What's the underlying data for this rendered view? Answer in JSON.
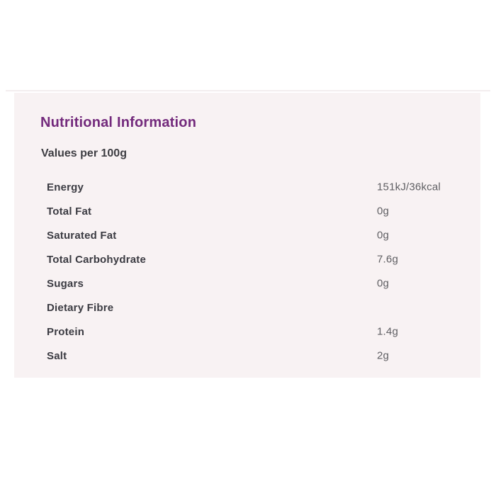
{
  "panel": {
    "title": "Nutritional Information",
    "subtitle": "Values per 100g",
    "rows": [
      {
        "label": "Energy",
        "value": "151kJ/36kcal"
      },
      {
        "label": "Total Fat",
        "value": "0g"
      },
      {
        "label": "Saturated Fat",
        "value": "0g"
      },
      {
        "label": "Total Carbohydrate",
        "value": "7.6g"
      },
      {
        "label": "Sugars",
        "value": "0g"
      },
      {
        "label": "Dietary Fibre",
        "value": ""
      },
      {
        "label": "Protein",
        "value": "1.4g"
      },
      {
        "label": "Salt",
        "value": "2g"
      }
    ],
    "colors": {
      "accent_purple": "#732a7c",
      "panel_background": "#f8f2f3",
      "label_text": "#3b3b42",
      "value_text": "#5f5f63"
    }
  }
}
